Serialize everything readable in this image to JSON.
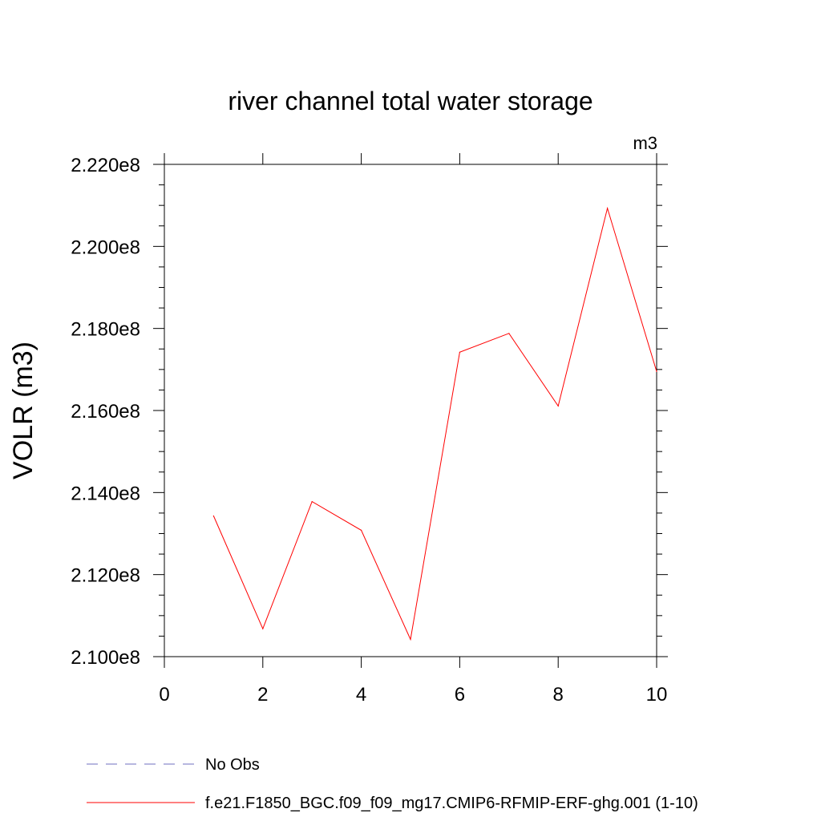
{
  "chart_data": {
    "type": "line",
    "title": "river channel total water storage",
    "units_label": "m3",
    "ylabel": "VOLR  (m3)",
    "xlabel": "",
    "xlim": [
      0,
      10
    ],
    "ylim": [
      210000000,
      222000000
    ],
    "x_ticks": [
      0,
      2,
      4,
      6,
      8,
      10
    ],
    "x_tick_labels": [
      "0",
      "2",
      "4",
      "6",
      "8",
      "10"
    ],
    "y_ticks": [
      210000000,
      212000000,
      214000000,
      216000000,
      218000000,
      220000000,
      222000000
    ],
    "y_tick_labels": [
      "2.100e8",
      "2.120e8",
      "2.140e8",
      "2.160e8",
      "2.180e8",
      "2.200e8",
      "2.220e8"
    ],
    "grid": false,
    "legend_placement": "bottom-left",
    "series": [
      {
        "name": "No Obs",
        "color": "#6f6fc0",
        "dash": true,
        "x": [],
        "values": []
      },
      {
        "name": "f.e21.F1850_BGC.f09_f09_mg17.CMIP6-RFMIP-ERF-ghg.001 (1-10)",
        "color": "#ff0000",
        "dash": false,
        "x": [
          1,
          2,
          3,
          4,
          5,
          6,
          7,
          8,
          9,
          10
        ],
        "values": [
          213430000,
          210680000,
          213780000,
          213080000,
          210420000,
          217420000,
          217880000,
          216110000,
          220930000,
          216950000
        ]
      }
    ]
  }
}
